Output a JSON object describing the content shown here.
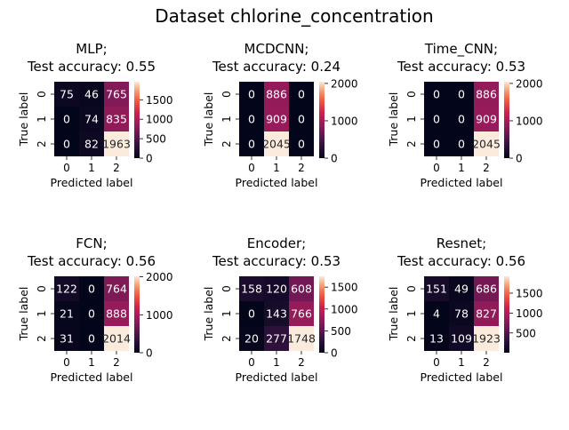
{
  "figure": {
    "title": "Dataset chlorine_concentration"
  },
  "chart_data": [
    {
      "type": "heatmap",
      "title": [
        "MLP;",
        "Test accuracy: 0.55"
      ],
      "xlabel": "Predicted label",
      "ylabel": "True label",
      "x_ticks": [
        "0",
        "1",
        "2"
      ],
      "y_ticks": [
        "0",
        "1",
        "2"
      ],
      "matrix": [
        [
          75,
          46,
          765
        ],
        [
          0,
          74,
          835
        ],
        [
          0,
          82,
          1963
        ]
      ],
      "colorbar": {
        "range": [
          0,
          1963
        ],
        "ticks": [
          0,
          500,
          1000,
          1500
        ]
      }
    },
    {
      "type": "heatmap",
      "title": [
        "MCDCNN;",
        "Test accuracy: 0.24"
      ],
      "xlabel": "Predicted label",
      "ylabel": "True label",
      "x_ticks": [
        "0",
        "1",
        "2"
      ],
      "y_ticks": [
        "0",
        "1",
        "2"
      ],
      "matrix": [
        [
          0,
          886,
          0
        ],
        [
          0,
          909,
          0
        ],
        [
          0,
          2045,
          0
        ]
      ],
      "colorbar": {
        "range": [
          0,
          2045
        ],
        "ticks": [
          0,
          1000,
          2000
        ]
      }
    },
    {
      "type": "heatmap",
      "title": [
        "Time_CNN;",
        "Test accuracy: 0.53"
      ],
      "xlabel": "Predicted label",
      "ylabel": "True label",
      "x_ticks": [
        "0",
        "1",
        "2"
      ],
      "y_ticks": [
        "0",
        "1",
        "2"
      ],
      "matrix": [
        [
          0,
          0,
          886
        ],
        [
          0,
          0,
          909
        ],
        [
          0,
          0,
          2045
        ]
      ],
      "colorbar": {
        "range": [
          0,
          2045
        ],
        "ticks": [
          0,
          1000,
          2000
        ]
      }
    },
    {
      "type": "heatmap",
      "title": [
        "FCN;",
        "Test accuracy: 0.56"
      ],
      "xlabel": "Predicted label",
      "ylabel": "True label",
      "x_ticks": [
        "0",
        "1",
        "2"
      ],
      "y_ticks": [
        "0",
        "1",
        "2"
      ],
      "matrix": [
        [
          122,
          0,
          764
        ],
        [
          21,
          0,
          888
        ],
        [
          31,
          0,
          2014
        ]
      ],
      "colorbar": {
        "range": [
          0,
          2014
        ],
        "ticks": [
          0,
          1000,
          2000
        ]
      }
    },
    {
      "type": "heatmap",
      "title": [
        "Encoder;",
        "Test accuracy: 0.53"
      ],
      "xlabel": "Predicted label",
      "ylabel": "True label",
      "x_ticks": [
        "0",
        "1",
        "2"
      ],
      "y_ticks": [
        "0",
        "1",
        "2"
      ],
      "matrix": [
        [
          158,
          120,
          608
        ],
        [
          0,
          143,
          766
        ],
        [
          20,
          277,
          1748
        ]
      ],
      "colorbar": {
        "range": [
          0,
          1748
        ],
        "ticks": [
          0,
          500,
          1000,
          1500
        ]
      }
    },
    {
      "type": "heatmap",
      "title": [
        "Resnet;",
        "Test accuracy: 0.56"
      ],
      "xlabel": "Predicted label",
      "ylabel": "True label",
      "x_ticks": [
        "0",
        "1",
        "2"
      ],
      "y_ticks": [
        "0",
        "1",
        "2"
      ],
      "matrix": [
        [
          151,
          49,
          686
        ],
        [
          4,
          78,
          827
        ],
        [
          13,
          109,
          1923
        ]
      ],
      "colorbar": {
        "range": [
          4,
          1923
        ],
        "ticks": [
          500,
          1000,
          1500
        ]
      }
    }
  ]
}
